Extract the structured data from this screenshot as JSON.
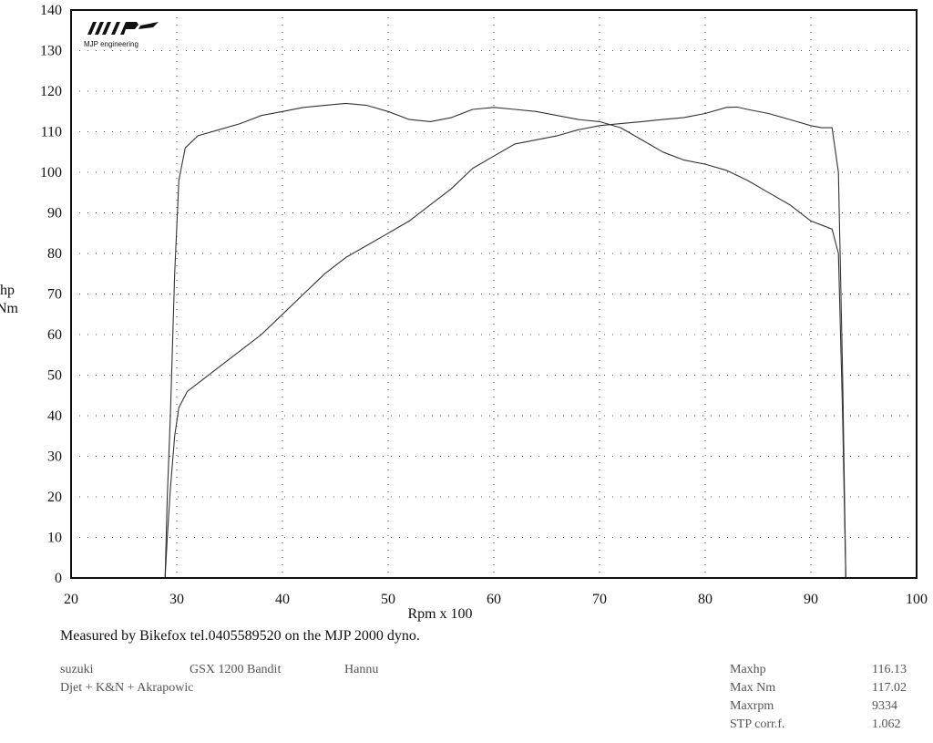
{
  "logo": {
    "mark": "MJP",
    "text": "MJP engineering"
  },
  "chart_data": {
    "type": "line",
    "title": "",
    "xlabel": "Rpm x 100",
    "ylabel_lines": [
      "hp",
      "Nm"
    ],
    "xlim": [
      20,
      100
    ],
    "ylim": [
      0,
      140
    ],
    "x_ticks": [
      20,
      30,
      40,
      50,
      60,
      70,
      80,
      90,
      100
    ],
    "y_ticks": [
      0,
      10,
      20,
      30,
      40,
      50,
      60,
      70,
      80,
      90,
      100,
      110,
      120,
      130,
      140
    ],
    "grid": "dotted",
    "line_color": "#333333",
    "series": [
      {
        "name": "Nm",
        "x": [
          28.9,
          29.1,
          29.4,
          29.8,
          30.2,
          30.8,
          32,
          34,
          36,
          38,
          40,
          42,
          44,
          46,
          48,
          50,
          52,
          54,
          56,
          58,
          60,
          62,
          64,
          66,
          68,
          70,
          72,
          74,
          76,
          78,
          80,
          82,
          84,
          86,
          88,
          90,
          91,
          92,
          92.6,
          93,
          93.3
        ],
        "y": [
          0,
          20,
          40,
          75,
          98,
          106,
          109,
          110.5,
          112,
          114,
          115,
          116,
          116.5,
          117,
          116.5,
          115,
          113,
          112.5,
          113.5,
          115.5,
          116,
          115.5,
          115,
          114,
          113,
          112.5,
          111,
          108,
          105,
          103,
          102,
          100.5,
          98,
          95,
          92,
          88,
          87,
          86,
          80,
          40,
          0
        ]
      },
      {
        "name": "hp",
        "x": [
          28.9,
          29.1,
          29.4,
          29.8,
          30.2,
          31,
          32,
          34,
          36,
          38,
          40,
          42,
          44,
          46,
          48,
          50,
          52,
          54,
          56,
          58,
          60,
          62,
          64,
          66,
          68,
          70,
          72,
          74,
          76,
          78,
          80,
          82,
          83,
          84,
          86,
          88,
          90,
          91,
          92,
          92.6,
          93,
          93.3
        ],
        "y": [
          0,
          10,
          22,
          35,
          42,
          46,
          48,
          52,
          56,
          60,
          65,
          70,
          75,
          79,
          82,
          85,
          88,
          92,
          96,
          101,
          104,
          107,
          108,
          109,
          110.5,
          111.5,
          112,
          112.5,
          113,
          113.5,
          114.5,
          116,
          116.1,
          115.5,
          114.5,
          113,
          111.5,
          111,
          111,
          100,
          50,
          0
        ]
      }
    ]
  },
  "caption": "Measured by Bikefox tel.0405589520 on the MJP 2000 dyno.",
  "info_left": {
    "make": "suzuki",
    "model": "GSX 1200 Bandit",
    "owner": "Hannu",
    "mods": "Djet + K&N + Akrapowic"
  },
  "stats": [
    {
      "label": "Maxhp",
      "value": "116.13"
    },
    {
      "label": "Max Nm",
      "value": "117.02"
    },
    {
      "label": "Maxrpm",
      "value": "9334"
    },
    {
      "label": "STP corr.f.",
      "value": "1.062"
    }
  ]
}
